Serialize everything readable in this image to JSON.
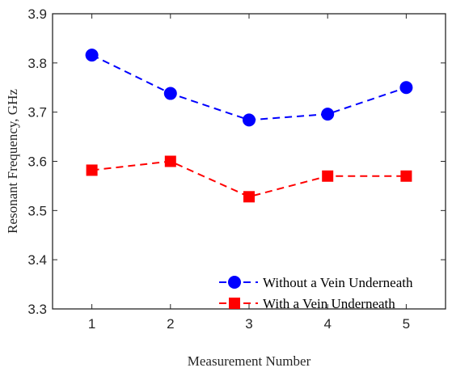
{
  "chart_data": {
    "type": "line",
    "xlabel": "Measurement Number",
    "ylabel": "Resonant Frequency, GHz",
    "x": [
      1,
      2,
      3,
      4,
      5
    ],
    "xlim": [
      0.5,
      5.5
    ],
    "ylim": [
      3.3,
      3.9
    ],
    "xticks": [
      "1",
      "2",
      "3",
      "4",
      "5"
    ],
    "yticks": [
      "3.3",
      "3.4",
      "3.5",
      "3.6",
      "3.7",
      "3.8",
      "3.9"
    ],
    "grid": false,
    "legend_position": "bottom-right",
    "series": [
      {
        "name": "Without a Vein Underneath",
        "values": [
          3.816,
          3.738,
          3.684,
          3.696,
          3.75
        ],
        "color": "#0000ff",
        "marker": "circle",
        "line_style": "dashed"
      },
      {
        "name": "With a Vein Underneath",
        "values": [
          3.582,
          3.6,
          3.528,
          3.57,
          3.57
        ],
        "color": "#ff0000",
        "marker": "square",
        "line_style": "dashed"
      }
    ]
  }
}
